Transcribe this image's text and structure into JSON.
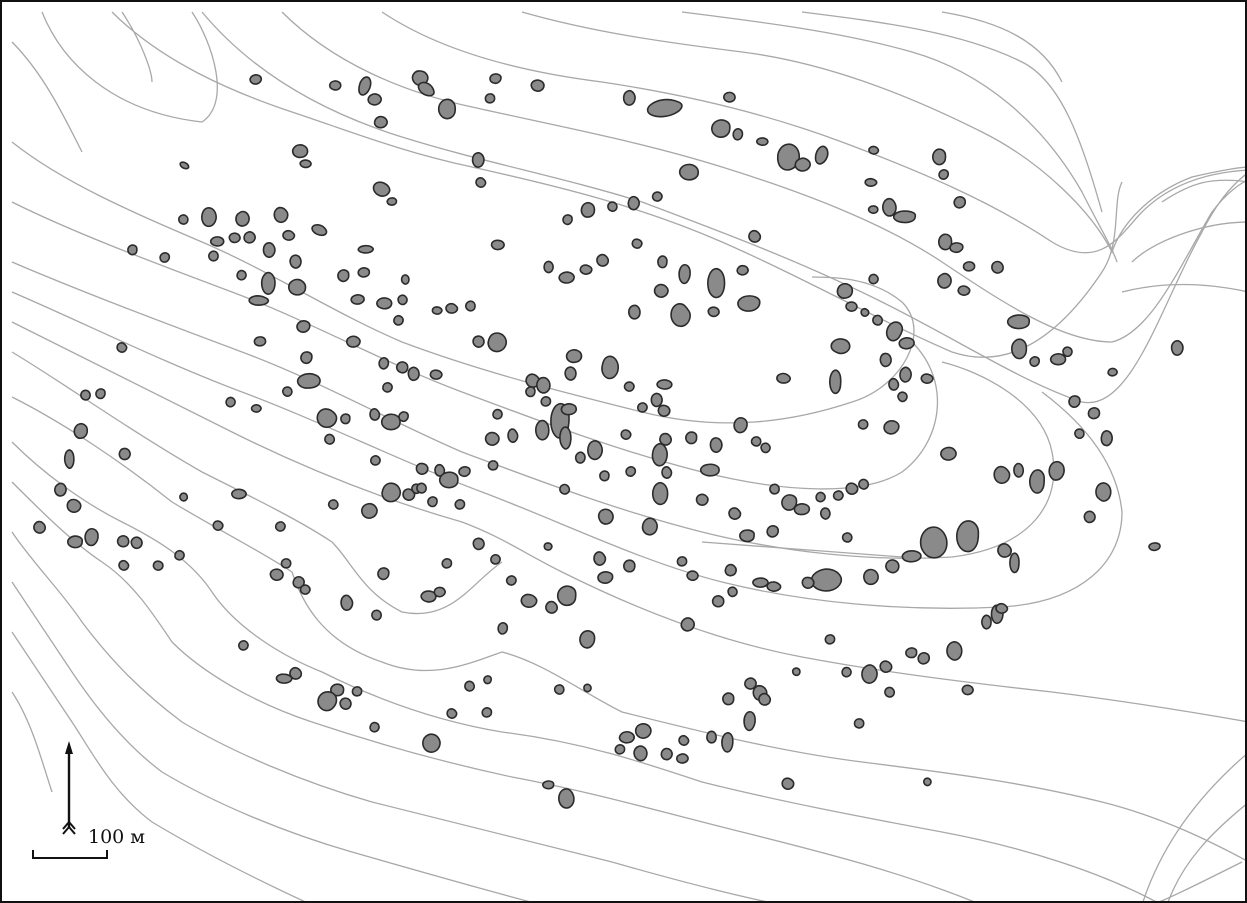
{
  "map": {
    "colors": {
      "background": "#ffffff",
      "contour": "#a8a8a8",
      "blob_fill": "#8a8a8a",
      "blob_stroke": "#2b2b2b",
      "faint_fill": "#d0d0d0",
      "faint_stroke": "#9a9a9a",
      "frame": "#111111"
    },
    "scale_bar": {
      "label": "100 м"
    },
    "north_arrow": {
      "icon": "north-arrow-icon"
    }
  }
}
